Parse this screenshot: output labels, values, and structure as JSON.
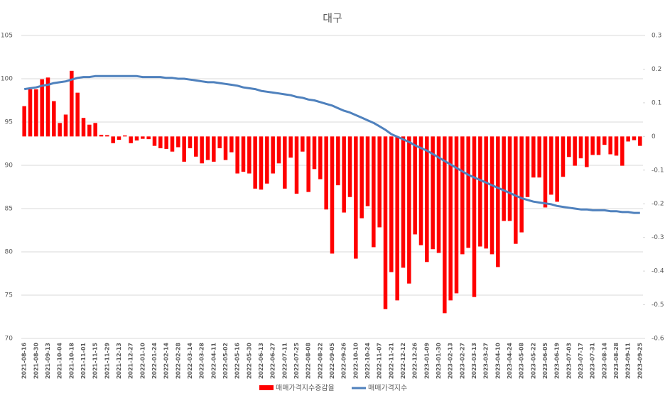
{
  "chart_data": {
    "type": "bar-line",
    "title": "대구",
    "categories": [
      "2021-08-16",
      null,
      "2021-08-30",
      null,
      "2021-09-13",
      null,
      "2021-10-04",
      null,
      "2021-10-18",
      null,
      "2021-11-01",
      null,
      "2021-11-15",
      null,
      "2021-11-29",
      null,
      "2021-12-13",
      null,
      "2021-12-27",
      null,
      "2022-01-10",
      null,
      "2022-01-24",
      null,
      "2022-02-14",
      null,
      "2022-02-28",
      null,
      "2022-03-14",
      null,
      "2022-03-28",
      null,
      "2022-04-11",
      null,
      "2022-05-02",
      null,
      "2022-05-16",
      null,
      "2022-05-30",
      null,
      "2022-06-13",
      null,
      "2022-06-27",
      null,
      "2022-07-11",
      null,
      "2022-07-25",
      null,
      "2022-08-08",
      null,
      "2022-08-22",
      null,
      "2022-09-05",
      null,
      "2022-09-26",
      null,
      "2022-10-10",
      null,
      "2022-10-24",
      null,
      "2022-11-07",
      null,
      "2022-11-21",
      null,
      "2022-12-12",
      null,
      "2022-12-26",
      null,
      "2023-01-09",
      null,
      "2023-01-30",
      null,
      "2023-02-13",
      null,
      "2023-02-27",
      null,
      "2023-03-13",
      null,
      "2023-03-27",
      null,
      "2023-04-10",
      null,
      "2023-04-24",
      null,
      "2023-05-08",
      null,
      "2023-05-22",
      null,
      "2023-06-05",
      null,
      "2023-06-19",
      null,
      "2023-07-03",
      null,
      "2023-07-17",
      null,
      "2023-07-31",
      null,
      "2023-08-14",
      null,
      "2023-08-28",
      null,
      "2023-09-11",
      null,
      "2023-09-25"
    ],
    "series": [
      {
        "name": "매매가격지수증감율",
        "kind": "bar",
        "axis": "y2",
        "color": "#ff0000",
        "values": [
          0.09,
          0.14,
          0.14,
          0.17,
          0.175,
          0.105,
          0.04,
          0.065,
          0.195,
          0.13,
          0.055,
          0.035,
          0.04,
          0.005,
          0.004,
          -0.02,
          -0.01,
          0.003,
          -0.02,
          -0.012,
          -0.007,
          -0.008,
          -0.028,
          -0.035,
          -0.037,
          -0.045,
          -0.032,
          -0.075,
          -0.035,
          -0.06,
          -0.08,
          -0.07,
          -0.075,
          -0.035,
          -0.07,
          -0.047,
          -0.11,
          -0.105,
          -0.11,
          -0.155,
          -0.158,
          -0.14,
          -0.11,
          -0.08,
          -0.155,
          -0.063,
          -0.17,
          -0.045,
          -0.165,
          -0.097,
          -0.127,
          -0.217,
          -0.348,
          -0.145,
          -0.226,
          -0.18,
          -0.363,
          -0.243,
          -0.207,
          -0.329,
          -0.27,
          -0.513,
          -0.403,
          -0.487,
          -0.39,
          -0.437,
          -0.291,
          -0.323,
          -0.373,
          -0.335,
          -0.346,
          -0.525,
          -0.487,
          -0.466,
          -0.35,
          -0.331,
          -0.477,
          -0.327,
          -0.333,
          -0.35,
          -0.388,
          -0.251,
          -0.251,
          -0.319,
          -0.285,
          -0.18,
          -0.122,
          -0.122,
          -0.211,
          -0.173,
          -0.194,
          -0.12,
          -0.061,
          -0.087,
          -0.065,
          -0.091,
          -0.055,
          -0.055,
          -0.025,
          -0.053,
          -0.057,
          -0.087,
          -0.015,
          -0.011,
          -0.028
        ]
      },
      {
        "name": "매매가격지수",
        "kind": "line",
        "color": "#4f81bd",
        "values": [
          98.8,
          98.9,
          99.0,
          99.2,
          99.3,
          99.5,
          99.6,
          99.7,
          99.9,
          100.1,
          100.2,
          100.2,
          100.3,
          100.3,
          100.3,
          100.3,
          100.3,
          100.3,
          100.3,
          100.3,
          100.2,
          100.2,
          100.2,
          100.2,
          100.1,
          100.1,
          100.0,
          100.0,
          99.9,
          99.8,
          99.7,
          99.6,
          99.6,
          99.5,
          99.4,
          99.3,
          99.2,
          99.0,
          98.9,
          98.8,
          98.6,
          98.5,
          98.4,
          98.3,
          98.2,
          98.1,
          97.9,
          97.8,
          97.6,
          97.5,
          97.3,
          97.1,
          96.9,
          96.6,
          96.3,
          96.1,
          95.8,
          95.5,
          95.2,
          94.9,
          94.5,
          94.1,
          93.6,
          93.3,
          93.0,
          92.7,
          92.3,
          92.0,
          91.7,
          91.3,
          90.9,
          90.5,
          90.1,
          89.7,
          89.3,
          88.9,
          88.6,
          88.3,
          88.0,
          87.7,
          87.4,
          87.1,
          86.8,
          86.5,
          86.2,
          86.0,
          85.8,
          85.7,
          85.6,
          85.5,
          85.3,
          85.2,
          85.1,
          85.0,
          84.9,
          84.9,
          84.8,
          84.8,
          84.8,
          84.7,
          84.7,
          84.6,
          84.6,
          84.5,
          84.5
        ]
      }
    ],
    "ylim": [
      70,
      105
    ],
    "yticks": [
      70,
      75,
      80,
      85,
      90,
      95,
      100,
      105
    ],
    "y2lim": [
      -0.6,
      0.3
    ],
    "y2ticks": [
      -0.6,
      -0.5,
      -0.4,
      -0.3,
      -0.2,
      -0.1,
      0,
      0.1,
      0.2,
      0.3
    ],
    "grid": true,
    "legend": "bottom"
  }
}
